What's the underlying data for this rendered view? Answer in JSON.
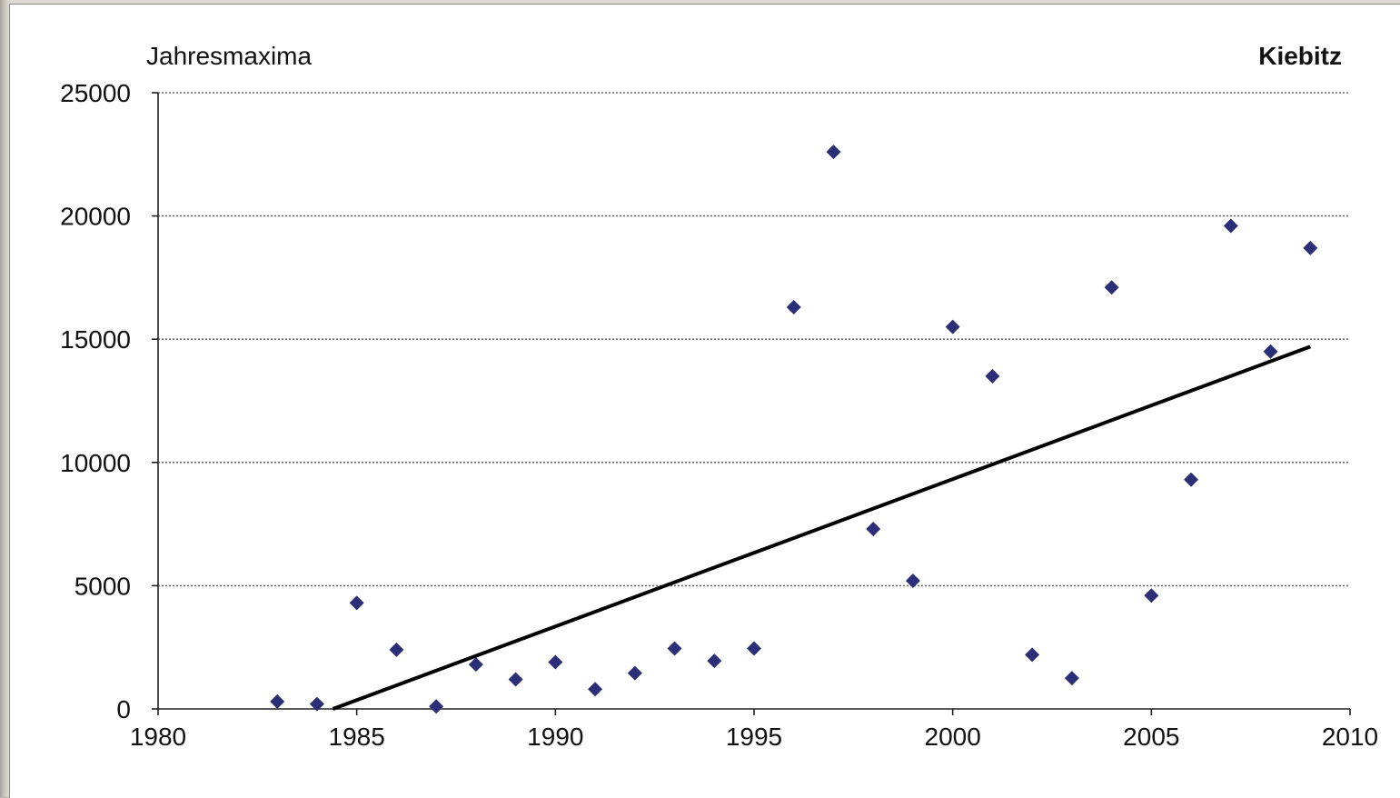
{
  "chart_data": {
    "type": "scatter",
    "title": "Kiebitz",
    "ylabel": "Jahresmaxima",
    "xlabel": "",
    "xlim": [
      1980,
      2010
    ],
    "ylim": [
      0,
      25000
    ],
    "x_ticks": [
      1980,
      1985,
      1990,
      1995,
      2000,
      2005,
      2010
    ],
    "y_ticks": [
      0,
      5000,
      10000,
      15000,
      20000,
      25000
    ],
    "grid": "horizontal, dotted",
    "series": [
      {
        "marker": "diamond",
        "color": "#2b2f78",
        "points": [
          {
            "x": 1983,
            "y": 300
          },
          {
            "x": 1984,
            "y": 200
          },
          {
            "x": 1985,
            "y": 4300
          },
          {
            "x": 1986,
            "y": 2400
          },
          {
            "x": 1987,
            "y": 100
          },
          {
            "x": 1988,
            "y": 1800
          },
          {
            "x": 1989,
            "y": 1200
          },
          {
            "x": 1990,
            "y": 1900
          },
          {
            "x": 1991,
            "y": 800
          },
          {
            "x": 1992,
            "y": 1450
          },
          {
            "x": 1993,
            "y": 2450
          },
          {
            "x": 1994,
            "y": 1950
          },
          {
            "x": 1995,
            "y": 2450
          },
          {
            "x": 1996,
            "y": 16300
          },
          {
            "x": 1997,
            "y": 22600
          },
          {
            "x": 1998,
            "y": 7300
          },
          {
            "x": 1999,
            "y": 5200
          },
          {
            "x": 2000,
            "y": 15500
          },
          {
            "x": 2001,
            "y": 13500
          },
          {
            "x": 2002,
            "y": 2200
          },
          {
            "x": 2003,
            "y": 1250
          },
          {
            "x": 2004,
            "y": 17100
          },
          {
            "x": 2005,
            "y": 4600
          },
          {
            "x": 2006,
            "y": 9300
          },
          {
            "x": 2007,
            "y": 19600
          },
          {
            "x": 2008,
            "y": 14500
          },
          {
            "x": 2009,
            "y": 18700
          }
        ]
      }
    ],
    "trendline": {
      "color": "#000000",
      "points": [
        {
          "x": 1984.4,
          "y": 0
        },
        {
          "x": 2009,
          "y": 14700
        }
      ]
    }
  }
}
